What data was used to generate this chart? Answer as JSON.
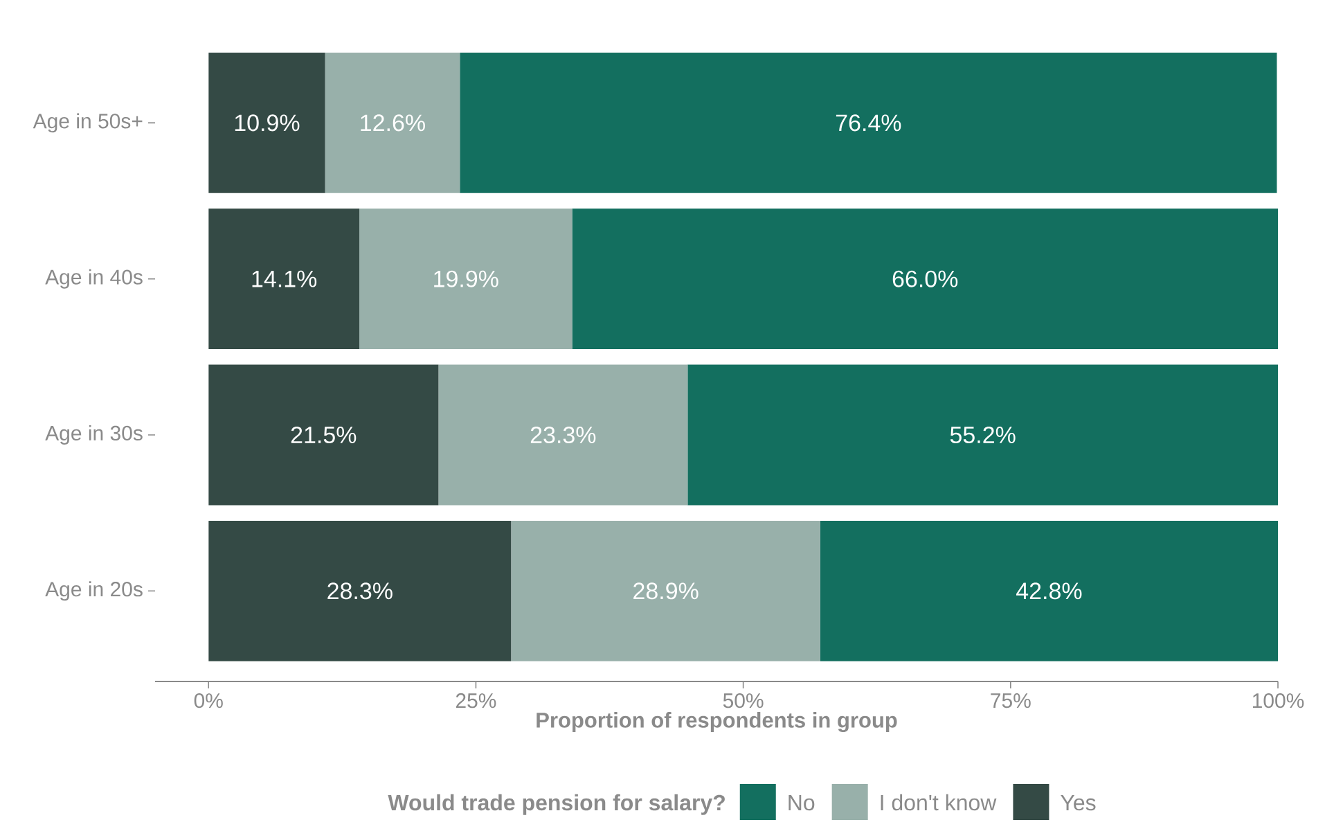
{
  "chart_data": {
    "type": "bar",
    "orientation": "horizontal",
    "stacked": true,
    "categories": [
      "Age in 50s+",
      "Age in 40s",
      "Age in 30s",
      "Age in 20s"
    ],
    "series": [
      {
        "name": "Yes",
        "color": "#344a45",
        "values": [
          10.9,
          14.1,
          21.5,
          28.3
        ],
        "value_labels": [
          "10.9%",
          "14.1%",
          "21.5%",
          "28.3%"
        ]
      },
      {
        "name": "I don't know",
        "color": "#98b0aa",
        "values": [
          12.6,
          19.9,
          23.3,
          28.9
        ],
        "value_labels": [
          "12.6%",
          "19.9%",
          "23.3%",
          "28.9%"
        ]
      },
      {
        "name": "No",
        "color": "#136f5f",
        "values": [
          76.4,
          66.0,
          55.2,
          42.8
        ],
        "value_labels": [
          "76.4%",
          "66.0%",
          "55.2%",
          "42.8%"
        ]
      }
    ],
    "xlim": [
      -5,
      100
    ],
    "xticks": [
      {
        "value": 0,
        "label": "0%"
      },
      {
        "value": 25,
        "label": "25%"
      },
      {
        "value": 50,
        "label": "50%"
      },
      {
        "value": 75,
        "label": "75%"
      },
      {
        "value": 100,
        "label": "100%"
      }
    ],
    "xlabel": "Proportion of respondents in group",
    "legend": "bottom",
    "legend_title": "Would trade pension for salary?"
  }
}
